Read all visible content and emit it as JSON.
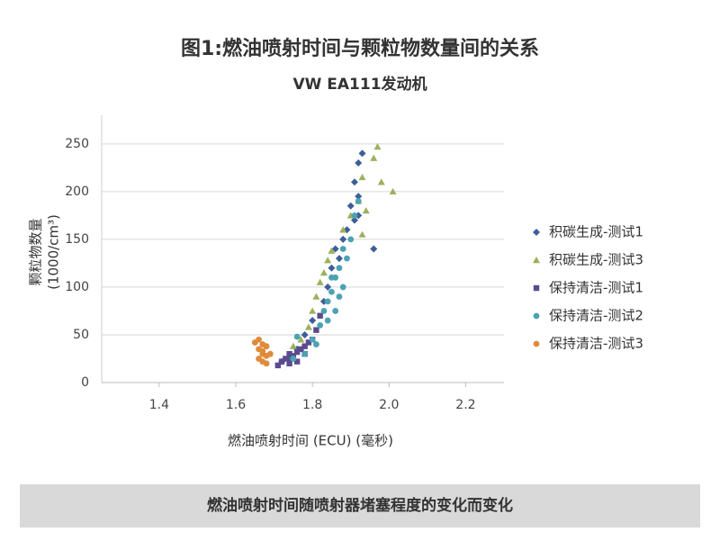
{
  "chart_data": {
    "type": "scatter",
    "title": "图1:燃油喷射时间与颗粒物数量间的关系",
    "subtitle": "VW EA111发动机",
    "xlabel": "燃油喷射时间 (ECU) (毫秒)",
    "ylabel": [
      "颗粒物数量",
      "(1000/cm³)"
    ],
    "xlim": [
      1.25,
      2.3
    ],
    "ylim": [
      0,
      280
    ],
    "xticks": [
      1.4,
      1.6,
      1.8,
      {
        "value": 2,
        "label": "2.0"
      },
      2.2
    ],
    "yticks": [
      0,
      50,
      100,
      150,
      200,
      250
    ],
    "grid": true,
    "legend": "right",
    "series": [
      {
        "name": "积碳生成-测试1",
        "color": "#3d5f98",
        "marker": "diamond",
        "x": [
          1.93,
          1.92,
          1.91,
          1.92,
          1.9,
          1.92,
          1.96,
          1.88,
          1.87,
          1.85,
          1.84,
          1.83,
          1.8,
          1.78,
          1.76,
          1.74,
          1.72,
          1.89,
          1.91,
          1.86
        ],
        "values": [
          240,
          230,
          210,
          195,
          185,
          175,
          140,
          150,
          130,
          120,
          100,
          85,
          65,
          50,
          35,
          25,
          22,
          160,
          170,
          140
        ]
      },
      {
        "name": "积碳生成-测试3",
        "color": "#9db05c",
        "marker": "triangle",
        "x": [
          1.97,
          2.01,
          1.96,
          1.93,
          1.92,
          1.94,
          1.93,
          1.9,
          1.88,
          1.85,
          1.84,
          1.83,
          1.82,
          1.81,
          1.8,
          1.79,
          1.77,
          1.75,
          1.98
        ],
        "values": [
          247,
          200,
          235,
          215,
          190,
          180,
          155,
          175,
          160,
          138,
          128,
          115,
          105,
          90,
          75,
          58,
          45,
          38,
          210
        ]
      },
      {
        "name": "保持清洁-测试1",
        "color": "#5b4a8e",
        "marker": "square",
        "x": [
          1.71,
          1.72,
          1.73,
          1.74,
          1.75,
          1.76,
          1.77,
          1.78,
          1.79,
          1.8,
          1.76,
          1.78,
          1.74,
          1.81,
          1.82
        ],
        "values": [
          18,
          22,
          25,
          20,
          28,
          32,
          35,
          38,
          42,
          45,
          22,
          30,
          30,
          55,
          70
        ]
      },
      {
        "name": "保持清洁-测试2",
        "color": "#4ca3b3",
        "marker": "circle",
        "x": [
          1.78,
          1.8,
          1.82,
          1.83,
          1.84,
          1.85,
          1.86,
          1.87,
          1.88,
          1.87,
          1.89,
          1.9,
          1.91,
          1.92,
          1.86,
          1.84,
          1.81,
          1.76,
          1.75,
          1.88,
          1.85
        ],
        "values": [
          30,
          45,
          60,
          75,
          85,
          95,
          110,
          120,
          100,
          90,
          130,
          150,
          175,
          190,
          75,
          65,
          40,
          48,
          25,
          140,
          110
        ]
      },
      {
        "name": "保持清洁-测试3",
        "color": "#e08b3b",
        "marker": "circle",
        "x": [
          1.66,
          1.67,
          1.66,
          1.67,
          1.68,
          1.66,
          1.67,
          1.68,
          1.65,
          1.67,
          1.69,
          1.68
        ],
        "values": [
          45,
          40,
          35,
          30,
          28,
          25,
          33,
          38,
          42,
          22,
          30,
          20
        ]
      }
    ]
  },
  "footer": "燃油喷射时间随喷射器堵塞程度的变化而变化"
}
